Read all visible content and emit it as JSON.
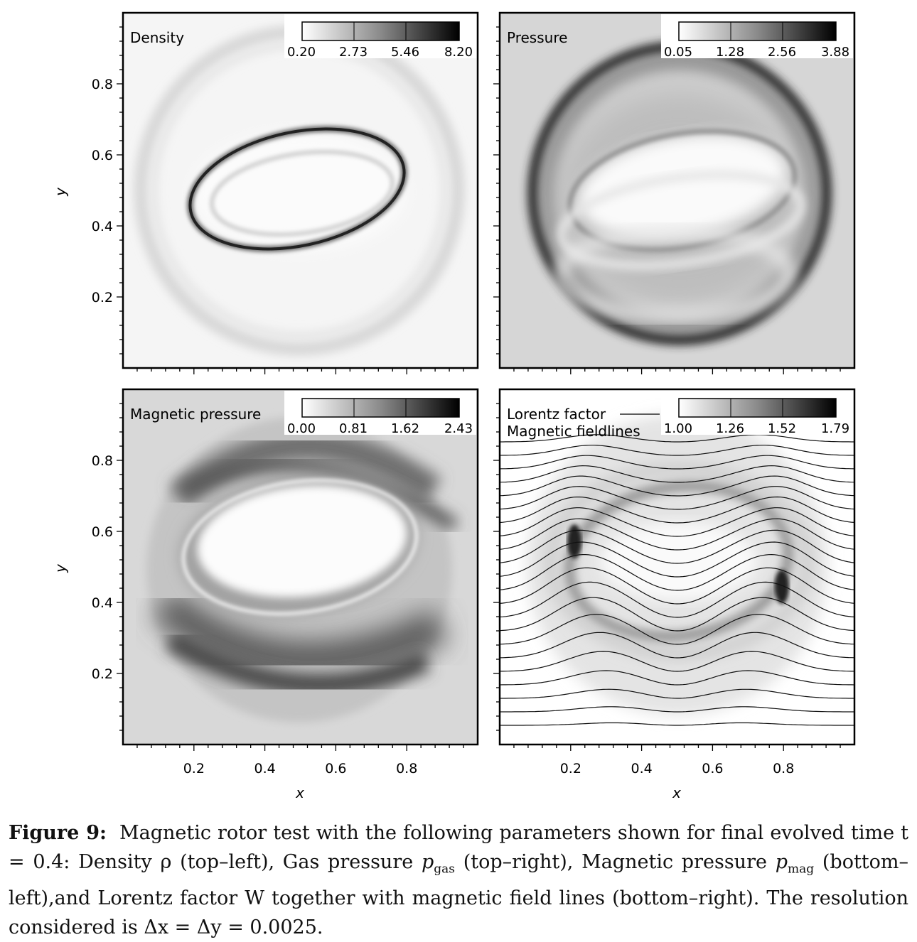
{
  "figure": {
    "x_axis_label": "x",
    "y_axis_label": "y",
    "x_ticks": [
      "0.2",
      "0.4",
      "0.6",
      "0.8"
    ],
    "y_ticks": [
      "0.2",
      "0.4",
      "0.6",
      "0.8"
    ],
    "panels": [
      {
        "id": "density",
        "title": "Density",
        "background": "#f5f5f5",
        "colorbar_ticks": [
          "0.20",
          "2.73",
          "5.46",
          "8.20"
        ]
      },
      {
        "id": "pressure",
        "title": "Pressure",
        "background": "#d6d6d6",
        "colorbar_ticks": [
          "0.05",
          "1.28",
          "2.56",
          "3.88"
        ]
      },
      {
        "id": "magnetic-pressure",
        "title": "Magnetic pressure",
        "background": "#d8d8d8",
        "colorbar_ticks": [
          "0.00",
          "0.81",
          "1.62",
          "2.43"
        ]
      },
      {
        "id": "lorentz-factor",
        "title": "Lorentz factor",
        "legend_line_label": "Magnetic fieldlines",
        "background": "#ffffff",
        "colorbar_ticks": [
          "1.00",
          "1.26",
          "1.52",
          "1.79"
        ]
      }
    ]
  },
  "caption": {
    "label": "Figure 9:",
    "text_1": "Magnetic rotor test with the following parameters shown for final evolved time",
    "text_2": "t = 0.4: Density ρ (top–left), Gas pressure ",
    "p": "p",
    "sub_gas": "gas",
    "text_3": " (top–right), Magnetic pressure ",
    "sub_mag": "mag",
    "text_4": " (bottom–left),and Lorentz factor W together with magnetic field lines (bottom–right). The resolution considered is Δx = Δy = 0.0025."
  },
  "chart_data": {
    "type": "heatmap",
    "xlabel": "x",
    "ylabel": "y",
    "xlim": [
      0,
      1
    ],
    "ylim": [
      0,
      1
    ],
    "xticks": [
      0.2,
      0.4,
      0.6,
      0.8
    ],
    "yticks": [
      0.2,
      0.4,
      0.6,
      0.8
    ],
    "panels": [
      {
        "title": "Density",
        "colorbar": [
          0.2,
          2.73,
          5.46,
          8.2
        ]
      },
      {
        "title": "Pressure",
        "colorbar": [
          0.05,
          1.28,
          2.56,
          3.88
        ]
      },
      {
        "title": "Magnetic pressure",
        "colorbar": [
          0.0,
          0.81,
          1.62,
          2.43
        ]
      },
      {
        "title": "Lorentz factor",
        "colorbar": [
          1.0,
          1.26,
          1.52,
          1.79
        ],
        "overlay": "Magnetic fieldlines"
      }
    ]
  }
}
